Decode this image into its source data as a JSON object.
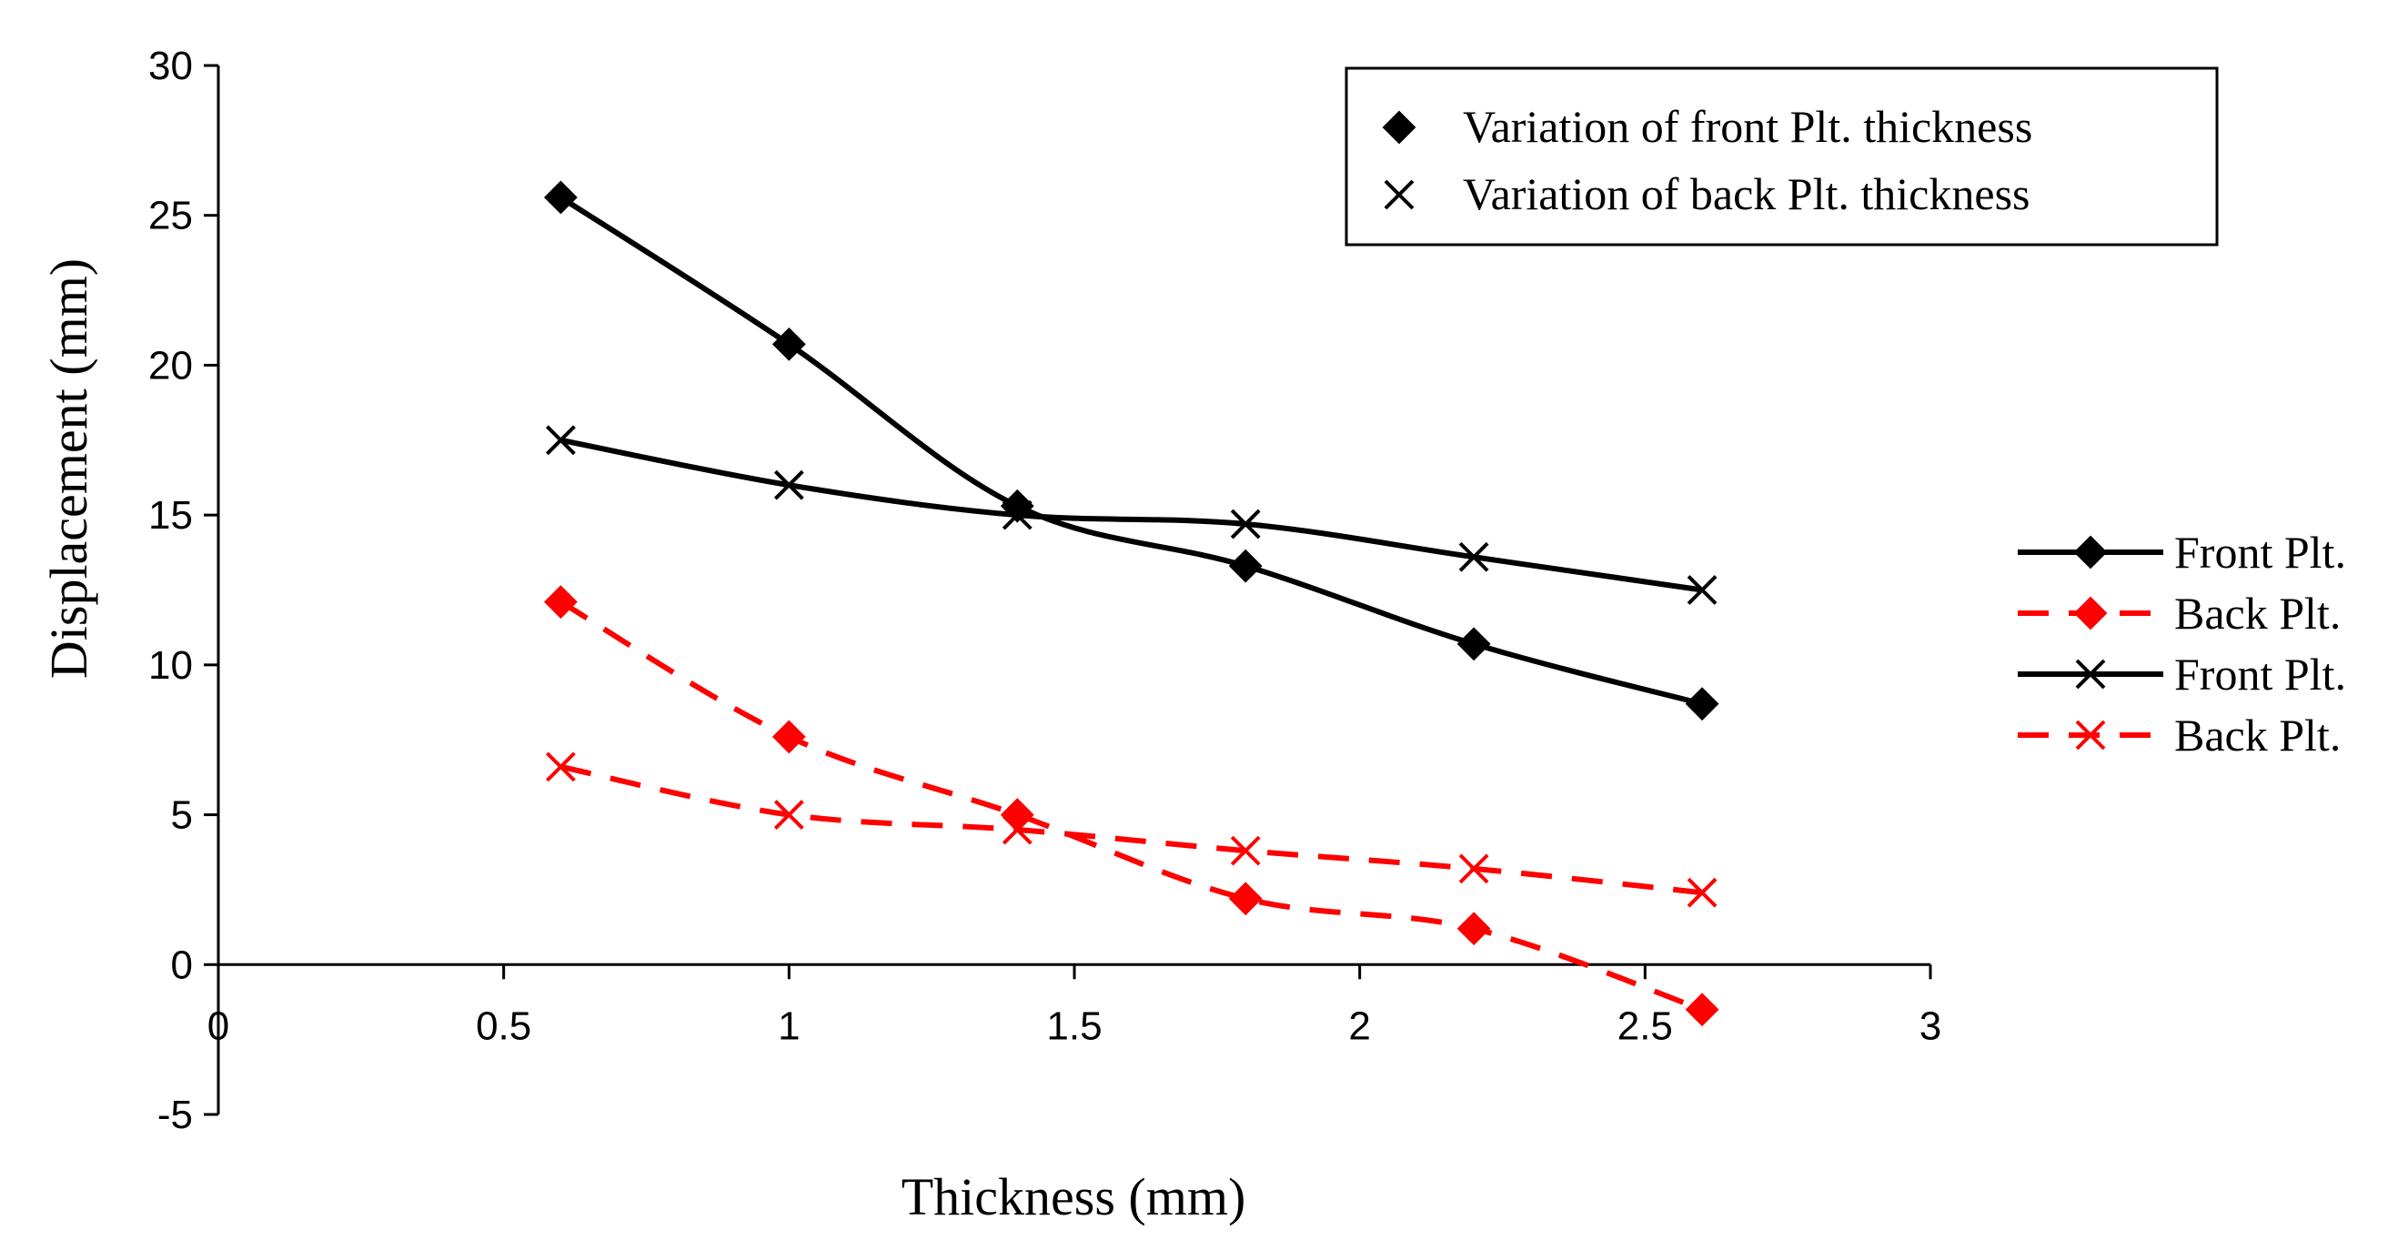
{
  "chart_data": {
    "type": "line",
    "title": "",
    "xlabel": "Thickness (mm)",
    "ylabel": "Displacement (mm)",
    "xlim": [
      0,
      3
    ],
    "ylim": [
      -5,
      30
    ],
    "x_ticks": [
      "0",
      "0.5",
      "1",
      "1.5",
      "2",
      "2.5",
      "3"
    ],
    "y_ticks": [
      "-5",
      "0",
      "5",
      "10",
      "15",
      "20",
      "25",
      "30"
    ],
    "x": [
      0.6,
      1.0,
      1.4,
      1.8,
      2.2,
      2.6
    ],
    "series": [
      {
        "name": "Front Plt.",
        "group": "Variation of front Plt. thickness",
        "marker": "diamond",
        "color": "#000000",
        "dashed": false,
        "values": [
          25.6,
          20.7,
          15.3,
          13.3,
          10.7,
          8.7
        ]
      },
      {
        "name": "Back Plt.",
        "group": "Variation of front Plt. thickness",
        "marker": "diamond",
        "color": "#ff0000",
        "dashed": true,
        "values": [
          12.1,
          7.6,
          5.0,
          2.2,
          1.2,
          -1.5
        ]
      },
      {
        "name": "Front Plt.",
        "group": "Variation of back Plt. thickness",
        "marker": "x",
        "color": "#000000",
        "dashed": false,
        "values": [
          17.5,
          16.0,
          15.0,
          14.7,
          13.6,
          12.5
        ]
      },
      {
        "name": "Back Plt.",
        "group": "Variation of back Plt. thickness",
        "marker": "x",
        "color": "#ff0000",
        "dashed": true,
        "values": [
          6.6,
          5.0,
          4.5,
          3.8,
          3.2,
          2.4
        ]
      }
    ],
    "legend_boxed": {
      "placement": "top-right",
      "entries": [
        {
          "marker": "diamond",
          "label": "Variation of front Plt. thickness"
        },
        {
          "marker": "x",
          "label": "Variation of back Plt. thickness"
        }
      ]
    },
    "legend_series_placement": "right"
  }
}
